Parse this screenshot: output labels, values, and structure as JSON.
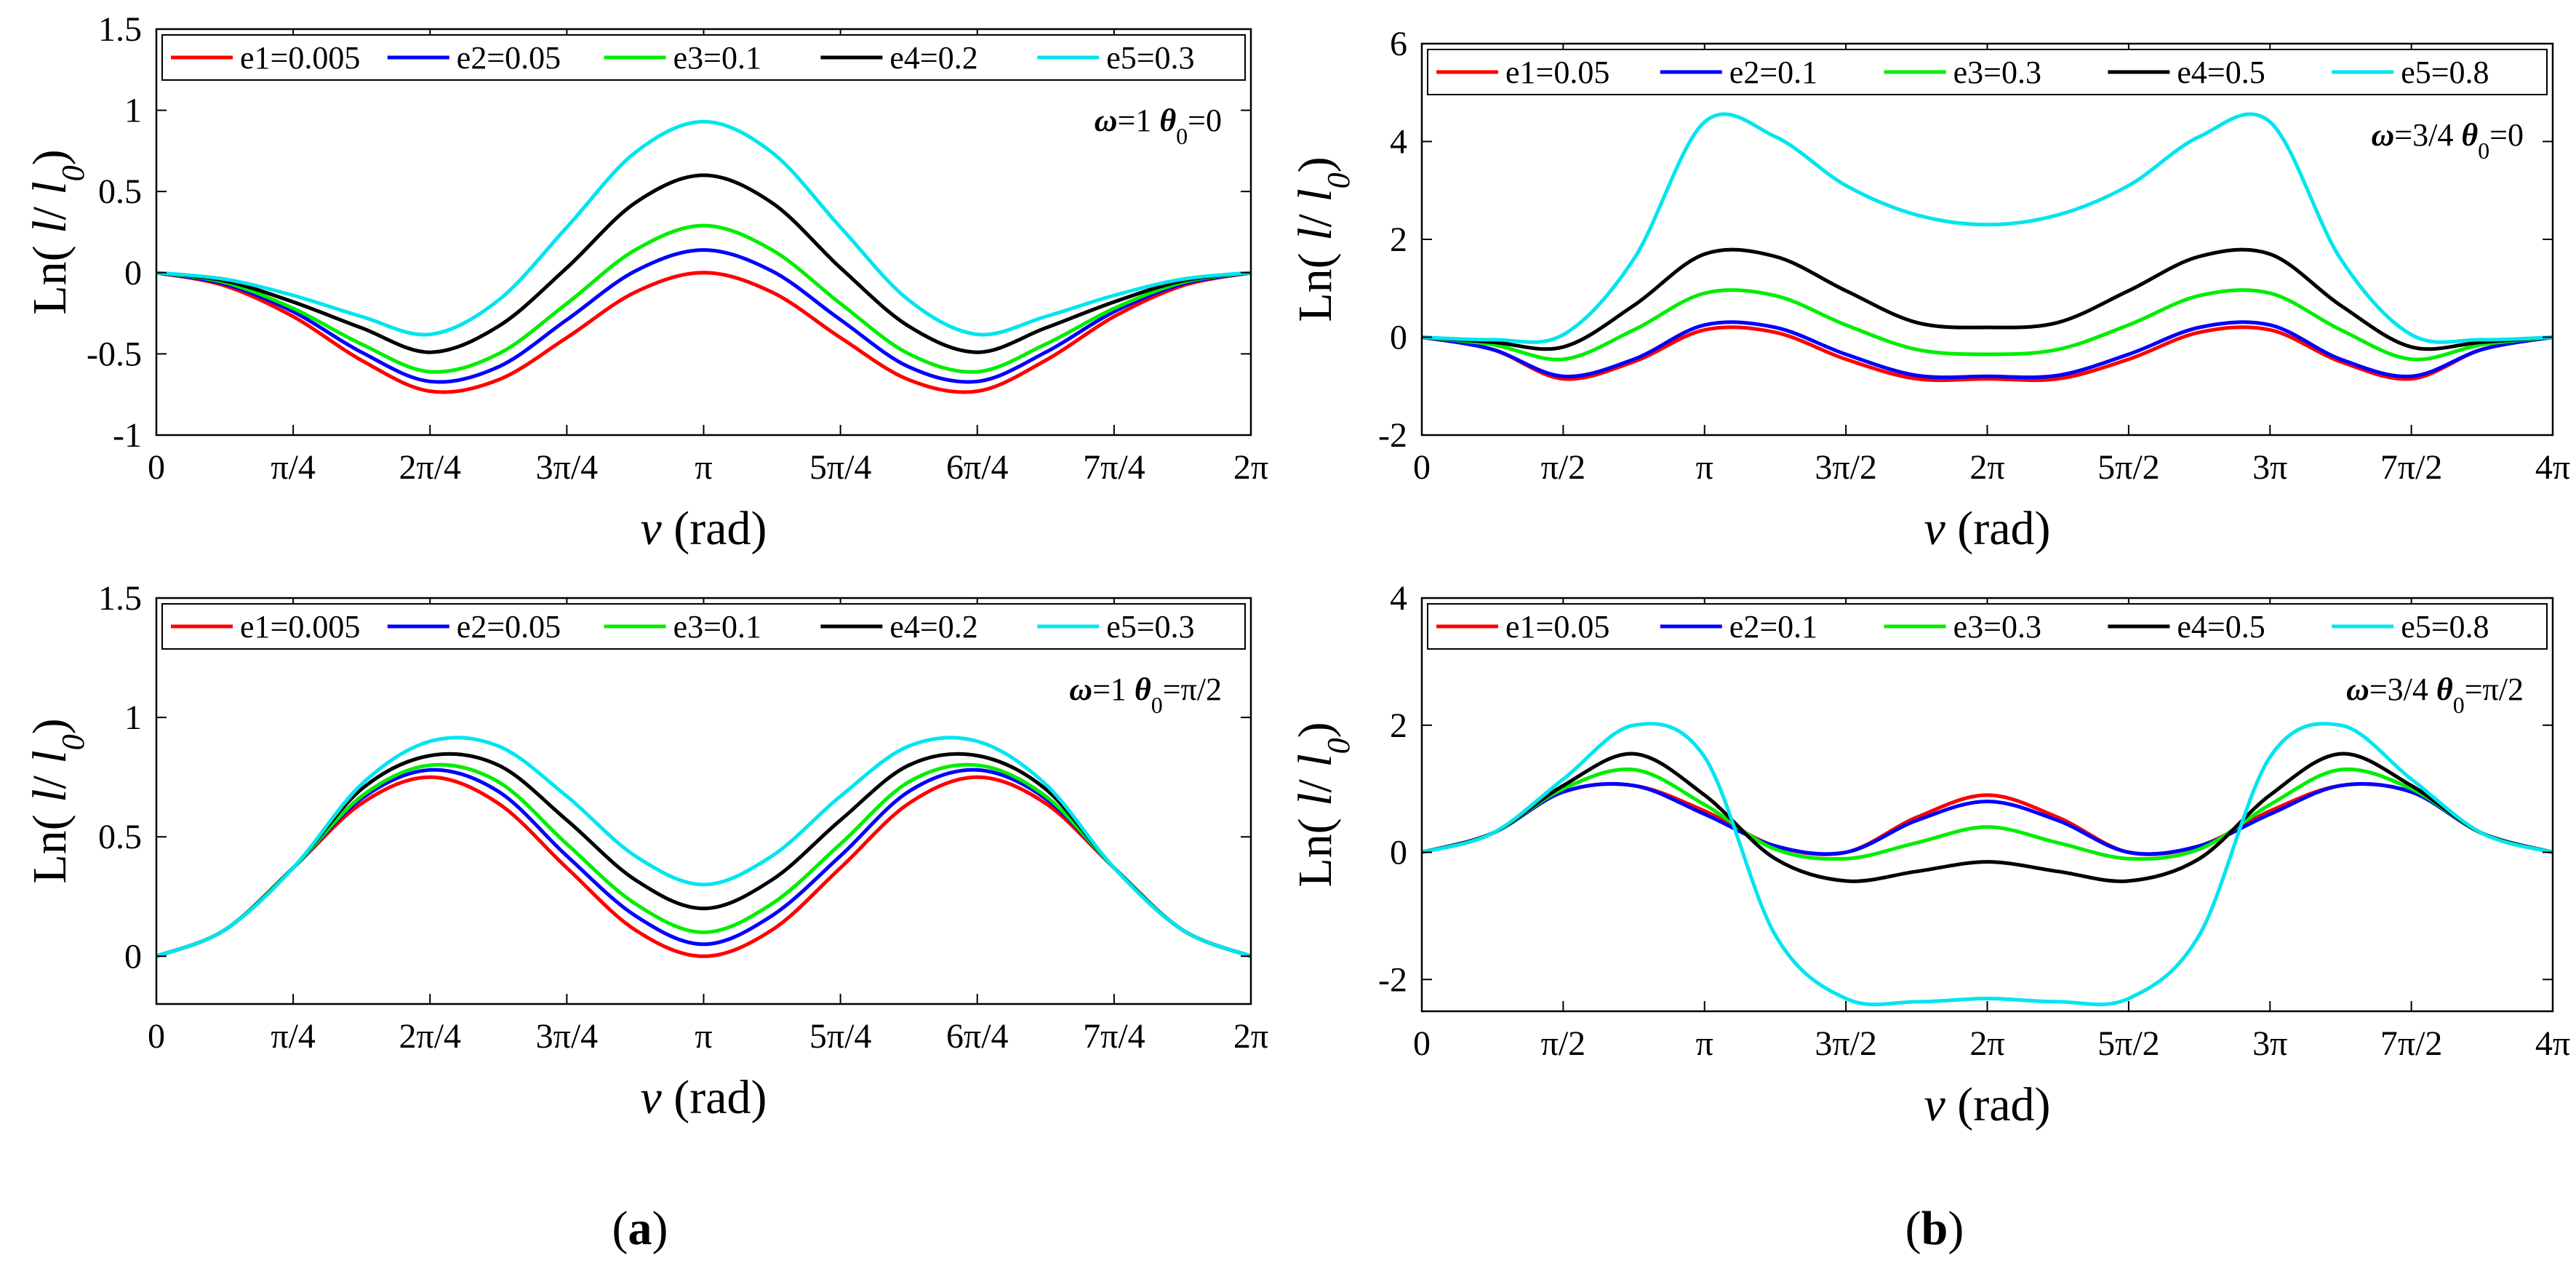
{
  "figure": {
    "caption_a": "(a)",
    "caption_b": "(b)"
  },
  "chart_data": [
    {
      "id": "a1",
      "type": "line",
      "xlabel": "ν (rad)",
      "ylabel": "Ln( l/ l0)",
      "annotation": "ω=1  θ0=0",
      "xlim": [
        0,
        8
      ],
      "ylim": [
        -1,
        1.5
      ],
      "xticks": [
        0,
        1,
        2,
        3,
        4,
        5,
        6,
        7,
        8
      ],
      "xtick_labels": [
        "0",
        "π/4",
        "2π/4",
        "3π/4",
        "π",
        "5π/4",
        "6π/4",
        "7π/4",
        "2π"
      ],
      "yticks": [
        -1,
        -0.5,
        0,
        0.5,
        1,
        1.5
      ],
      "ytick_labels": [
        "-1",
        "-0.5",
        "0",
        "0.5",
        "1",
        "1.5"
      ],
      "x": [
        0,
        0.5,
        1,
        1.5,
        2,
        2.5,
        3,
        3.5,
        4,
        4.5,
        5,
        5.5,
        6,
        6.5,
        7,
        7.5,
        8
      ],
      "series": [
        {
          "name": "e1=0.005",
          "color": "#ff0000",
          "values": [
            0,
            -0.08,
            -0.27,
            -0.54,
            -0.73,
            -0.66,
            -0.4,
            -0.12,
            0,
            -0.12,
            -0.4,
            -0.66,
            -0.73,
            -0.54,
            -0.27,
            -0.08,
            0
          ]
        },
        {
          "name": "e2=0.05",
          "color": "#0000ff",
          "values": [
            0,
            -0.07,
            -0.24,
            -0.49,
            -0.67,
            -0.58,
            -0.29,
            0.01,
            0.14,
            0.01,
            -0.29,
            -0.58,
            -0.67,
            -0.49,
            -0.24,
            -0.07,
            0
          ]
        },
        {
          "name": "e3=0.1",
          "color": "#00ee00",
          "values": [
            0,
            -0.06,
            -0.22,
            -0.44,
            -0.61,
            -0.5,
            -0.19,
            0.14,
            0.29,
            0.14,
            -0.19,
            -0.5,
            -0.61,
            -0.44,
            -0.22,
            -0.06,
            0
          ]
        },
        {
          "name": "e4=0.2",
          "color": "#000000",
          "values": [
            0,
            -0.05,
            -0.18,
            -0.34,
            -0.49,
            -0.33,
            0.03,
            0.43,
            0.6,
            0.43,
            0.03,
            -0.33,
            -0.49,
            -0.34,
            -0.18,
            -0.05,
            0
          ]
        },
        {
          "name": "e5=0.3",
          "color": "#00e5ee",
          "values": [
            0,
            -0.04,
            -0.14,
            -0.27,
            -0.38,
            -0.17,
            0.28,
            0.74,
            0.93,
            0.74,
            0.28,
            -0.17,
            -0.38,
            -0.27,
            -0.14,
            -0.04,
            0
          ]
        }
      ]
    },
    {
      "id": "b1",
      "type": "line",
      "xlabel": "ν (rad)",
      "ylabel": "Ln( l/ l0)",
      "annotation": "ω=3/4  θ0=0",
      "xlim": [
        0,
        8
      ],
      "ylim": [
        -2,
        6
      ],
      "xticks": [
        0,
        1,
        2,
        3,
        4,
        5,
        6,
        7,
        8
      ],
      "xtick_labels": [
        "0",
        "π/2",
        "π",
        "3π/2",
        "2π",
        "5π/2",
        "3π",
        "7π/2",
        "4π"
      ],
      "yticks": [
        -2,
        0,
        2,
        4,
        6
      ],
      "ytick_labels": [
        "-2",
        "0",
        "2",
        "4",
        "6"
      ],
      "x": [
        0,
        0.5,
        1,
        1.5,
        2,
        2.5,
        3,
        3.5,
        4,
        4.5,
        5,
        5.5,
        6,
        6.5,
        7,
        7.5,
        8
      ],
      "series": [
        {
          "name": "e1=0.05",
          "color": "#ff0000",
          "values": [
            0,
            -0.25,
            -0.85,
            -0.5,
            0.15,
            0.1,
            -0.45,
            -0.85,
            -0.85,
            -0.85,
            -0.45,
            0.1,
            0.15,
            -0.5,
            -0.85,
            -0.25,
            0
          ]
        },
        {
          "name": "e2=0.1",
          "color": "#0000ff",
          "values": [
            0,
            -0.25,
            -0.8,
            -0.45,
            0.25,
            0.2,
            -0.35,
            -0.78,
            -0.8,
            -0.78,
            -0.35,
            0.2,
            0.25,
            -0.45,
            -0.8,
            -0.25,
            0
          ]
        },
        {
          "name": "e3=0.3",
          "color": "#00ee00",
          "values": [
            0,
            -0.15,
            -0.45,
            0.15,
            0.9,
            0.85,
            0.25,
            -0.25,
            -0.35,
            -0.25,
            0.25,
            0.85,
            0.9,
            0.15,
            -0.45,
            -0.15,
            0
          ]
        },
        {
          "name": "e4=0.5",
          "color": "#000000",
          "values": [
            0,
            -0.1,
            -0.2,
            0.65,
            1.7,
            1.65,
            0.95,
            0.3,
            0.2,
            0.3,
            0.95,
            1.65,
            1.7,
            0.65,
            -0.2,
            -0.1,
            0
          ]
        },
        {
          "name": "e5=0.8",
          "color": "#00e5ee",
          "values": [
            0,
            -0.05,
            0.05,
            1.6,
            4.4,
            4.1,
            3.1,
            2.5,
            2.3,
            2.5,
            3.1,
            4.1,
            4.4,
            1.6,
            0.05,
            -0.05,
            0
          ]
        }
      ]
    },
    {
      "id": "a2",
      "type": "line",
      "xlabel": "ν (rad)",
      "ylabel": "Ln( l/ l0)",
      "annotation": "ω=1  θ0=π/2",
      "xlim": [
        0,
        8
      ],
      "ylim": [
        -0.2,
        1.5
      ],
      "xticks": [
        0,
        1,
        2,
        3,
        4,
        5,
        6,
        7,
        8
      ],
      "xtick_labels": [
        "0",
        "π/4",
        "2π/4",
        "3π/4",
        "π",
        "5π/4",
        "6π/4",
        "7π/4",
        "2π"
      ],
      "yticks": [
        0,
        0.5,
        1,
        1.5
      ],
      "ytick_labels": [
        "0",
        "0.5",
        "1",
        "1.5"
      ],
      "x": [
        0,
        0.5,
        1,
        1.5,
        2,
        2.5,
        3,
        3.5,
        4,
        4.5,
        5,
        5.5,
        6,
        6.5,
        7,
        7.5,
        8
      ],
      "series": [
        {
          "name": "e1=0.005",
          "color": "#ff0000",
          "values": [
            0,
            0.11,
            0.37,
            0.64,
            0.75,
            0.64,
            0.37,
            0.11,
            0,
            0.11,
            0.37,
            0.64,
            0.75,
            0.64,
            0.37,
            0.11,
            0
          ]
        },
        {
          "name": "e2=0.05",
          "color": "#0000ff",
          "values": [
            0,
            0.11,
            0.37,
            0.66,
            0.78,
            0.69,
            0.42,
            0.17,
            0.05,
            0.17,
            0.42,
            0.69,
            0.78,
            0.66,
            0.37,
            0.11,
            0
          ]
        },
        {
          "name": "e3=0.1",
          "color": "#00ee00",
          "values": [
            0,
            0.11,
            0.37,
            0.67,
            0.8,
            0.73,
            0.47,
            0.22,
            0.1,
            0.22,
            0.47,
            0.73,
            0.8,
            0.67,
            0.37,
            0.11,
            0
          ]
        },
        {
          "name": "e4=0.2",
          "color": "#000000",
          "values": [
            0,
            0.11,
            0.37,
            0.7,
            0.84,
            0.8,
            0.57,
            0.32,
            0.2,
            0.32,
            0.57,
            0.8,
            0.84,
            0.7,
            0.37,
            0.11,
            0
          ]
        },
        {
          "name": "e5=0.3",
          "color": "#00e5ee",
          "values": [
            0,
            0.11,
            0.37,
            0.72,
            0.9,
            0.88,
            0.67,
            0.42,
            0.3,
            0.42,
            0.67,
            0.88,
            0.9,
            0.72,
            0.37,
            0.11,
            0
          ]
        }
      ]
    },
    {
      "id": "b2",
      "type": "line",
      "xlabel": "ν (rad)",
      "ylabel": "Ln( l/ l0)",
      "annotation": "ω=3/4  θ0=π/2",
      "xlim": [
        0,
        8
      ],
      "ylim": [
        -2.5,
        4
      ],
      "xticks": [
        0,
        1,
        2,
        3,
        4,
        5,
        6,
        7,
        8
      ],
      "xtick_labels": [
        "0",
        "π/2",
        "π",
        "3π/2",
        "2π",
        "5π/2",
        "3π",
        "7π/2",
        "4π"
      ],
      "yticks": [
        -2,
        0,
        2,
        4
      ],
      "ytick_labels": [
        "-2",
        "0",
        "2",
        "4"
      ],
      "x": [
        0,
        0.5,
        1,
        1.5,
        2,
        2.5,
        3,
        3.5,
        4,
        4.5,
        5,
        5.5,
        6,
        6.5,
        7,
        7.5,
        8
      ],
      "series": [
        {
          "name": "e1=0.05",
          "color": "#ff0000",
          "values": [
            0,
            0.3,
            0.95,
            1.05,
            0.65,
            0.1,
            0,
            0.55,
            0.9,
            0.55,
            0,
            0.1,
            0.65,
            1.05,
            0.95,
            0.3,
            0
          ]
        },
        {
          "name": "e2=0.1",
          "color": "#0000ff",
          "values": [
            0,
            0.3,
            0.95,
            1.05,
            0.6,
            0.1,
            0,
            0.5,
            0.8,
            0.5,
            0,
            0.1,
            0.6,
            1.05,
            0.95,
            0.3,
            0
          ]
        },
        {
          "name": "e3=0.3",
          "color": "#00ee00",
          "values": [
            0,
            0.3,
            1,
            1.3,
            0.75,
            0.05,
            -0.1,
            0.15,
            0.4,
            0.15,
            -0.1,
            0.05,
            0.75,
            1.3,
            1,
            0.3,
            0
          ]
        },
        {
          "name": "e4=0.5",
          "color": "#000000",
          "values": [
            0,
            0.3,
            1.05,
            1.55,
            0.9,
            -0.1,
            -0.45,
            -0.3,
            -0.15,
            -0.3,
            -0.45,
            -0.1,
            0.9,
            1.55,
            1.05,
            0.3,
            0
          ]
        },
        {
          "name": "e5=0.8",
          "color": "#00e5ee",
          "values": [
            0,
            0.3,
            1.15,
            2,
            1.5,
            -1.3,
            -2.3,
            -2.35,
            -2.3,
            -2.35,
            -2.3,
            -1.3,
            1.5,
            2,
            1.15,
            0.3,
            0
          ]
        }
      ]
    }
  ]
}
